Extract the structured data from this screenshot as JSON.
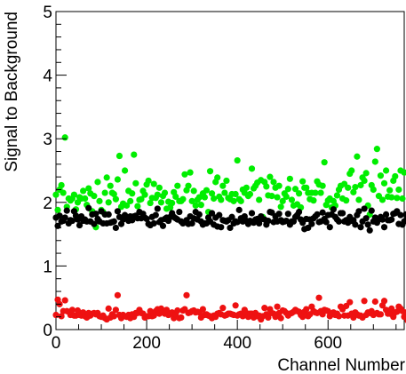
{
  "chart_data": {
    "type": "scatter",
    "title": "",
    "xlabel": "Channel Number",
    "ylabel": "Signal to Background",
    "xlim": [
      0,
      768
    ],
    "ylim": [
      0,
      5
    ],
    "xticks": [
      0,
      200,
      400,
      600
    ],
    "yticks": [
      0,
      1,
      2,
      3,
      4,
      5
    ],
    "grid": false,
    "legend": "none",
    "n_points_per_series": 193,
    "x_step": 4,
    "series": [
      {
        "color": "#00ee00",
        "values": [
          2.12,
          1.88,
          2.2,
          2.27,
          2.15,
          3.02,
          1.93,
          2.06,
          2.03,
          2.06,
          2.12,
          1.89,
          2.0,
          2.08,
          2.06,
          2.18,
          2.06,
          1.96,
          2.22,
          2.14,
          1.86,
          2.1,
          1.61,
          2.32,
          2.02,
          1.88,
          1.85,
          2.15,
          2.39,
          2.0,
          2.26,
          2.15,
          2.13,
          2.05,
          2.36,
          2.73,
          1.93,
          1.98,
          2.5,
          1.95,
          2.18,
          2.02,
          2.14,
          2.75,
          2.3,
          1.94,
          2.04,
          2.05,
          2.18,
          2.12,
          2.28,
          2.34,
          1.99,
          2.07,
          2.29,
          2.07,
          2.12,
          2.23,
          2.0,
          2.1,
          2.15,
          1.9,
          2.01,
          1.92,
          1.99,
          2.16,
          2.09,
          2.26,
          2.02,
          2.02,
          2.05,
          2.44,
          2.19,
          2.26,
          2.47,
          2.02,
          2.18,
          1.95,
          2.04,
          2.08,
          1.96,
          2.14,
          2.08,
          2.19,
          1.85,
          2.49,
          2.14,
          2.06,
          2.32,
          2.39,
          2.09,
          2.04,
          2.26,
          2.15,
          2.34,
          2.07,
          2.05,
          2.13,
          2.02,
          2.13,
          2.66,
          2.05,
          2.02,
          2.2,
          2.15,
          2.23,
          2.1,
          2.13,
          2.53,
          2.22,
          2.26,
          2.31,
          2.04,
          2.35,
          1.77,
          2.32,
          2.25,
          2.11,
          2.4,
          2.1,
          2.32,
          2.23,
          2.08,
          2.26,
          1.93,
          2.02,
          2.14,
          2.09,
          2.21,
          2.37,
          2.04,
          1.95,
          2.21,
          1.97,
          2.14,
          1.92,
          2.33,
          2.23,
          2.23,
          2.15,
          2.05,
          2.15,
          2.03,
          2.15,
          2.33,
          2.28,
          2.15,
          2.26,
          2.63,
          1.96,
          2.03,
          2.06,
          1.92,
          2.02,
          1.95,
          2.11,
          2.2,
          2.26,
          2.06,
          2.29,
          2.03,
          2.23,
          2.45,
          2.5,
          2.16,
          2.24,
          2.72,
          2.04,
          2.27,
          2.39,
          2.34,
          2.46,
          1.95,
          1.81,
          2.27,
          2.2,
          2.64,
          2.84,
          2.1,
          2.42,
          2.04,
          2.3,
          2.5,
          2.09,
          2.19,
          2.08,
          2.34,
          2.41,
          2.07,
          2.2,
          2.5,
          2.06,
          2.47
        ]
      },
      {
        "color": "#000000",
        "values": [
          1.76,
          1.63,
          1.79,
          1.7,
          1.71,
          1.76,
          1.87,
          1.67,
          1.72,
          1.71,
          1.86,
          1.79,
          1.73,
          1.64,
          1.78,
          1.71,
          1.73,
          1.7,
          1.91,
          1.7,
          1.81,
          1.66,
          1.82,
          1.74,
          1.7,
          1.86,
          1.67,
          1.81,
          1.67,
          1.81,
          1.68,
          1.69,
          1.7,
          1.6,
          1.86,
          1.77,
          1.66,
          1.73,
          1.8,
          1.75,
          1.71,
          1.78,
          1.72,
          1.78,
          1.79,
          1.75,
          1.85,
          1.75,
          1.82,
          1.76,
          1.74,
          1.66,
          1.64,
          1.77,
          1.67,
          1.8,
          1.9,
          1.69,
          1.72,
          1.63,
          1.74,
          1.76,
          1.71,
          1.77,
          1.83,
          1.77,
          1.75,
          1.73,
          1.85,
          1.7,
          1.67,
          1.69,
          1.72,
          1.66,
          1.78,
          1.67,
          1.75,
          1.85,
          1.73,
          1.81,
          1.7,
          1.65,
          1.67,
          1.67,
          1.76,
          1.7,
          1.83,
          1.65,
          1.76,
          1.62,
          1.8,
          1.61,
          1.72,
          1.71,
          1.7,
          1.72,
          1.6,
          1.77,
          1.67,
          1.7,
          1.69,
          1.88,
          1.75,
          1.7,
          1.78,
          1.71,
          1.66,
          1.71,
          1.83,
          1.68,
          1.73,
          1.74,
          1.67,
          1.78,
          1.74,
          1.73,
          1.65,
          1.71,
          1.85,
          1.84,
          1.69,
          1.78,
          1.7,
          1.82,
          1.72,
          1.69,
          1.7,
          1.71,
          1.82,
          1.65,
          1.7,
          1.7,
          1.77,
          1.8,
          1.85,
          1.73,
          1.68,
          1.58,
          1.74,
          1.6,
          1.73,
          1.66,
          1.75,
          1.78,
          1.81,
          1.69,
          1.7,
          1.84,
          1.74,
          1.69,
          1.8,
          1.61,
          1.81,
          1.89,
          1.77,
          1.73,
          1.7,
          1.83,
          1.83,
          1.7,
          1.72,
          1.68,
          1.77,
          1.71,
          1.72,
          1.65,
          1.8,
          1.86,
          1.61,
          1.7,
          1.9,
          1.75,
          1.65,
          1.56,
          1.87,
          1.7,
          1.76,
          1.68,
          1.73,
          1.77,
          1.73,
          1.61,
          1.81,
          1.72,
          1.72,
          1.73,
          1.82,
          1.83,
          1.86,
          1.66,
          1.8,
          1.65,
          1.7,
          1.81,
          1.75
        ]
      },
      {
        "color": "#ee1111",
        "values": [
          0.23,
          0.47,
          0.4,
          0.21,
          0.29,
          0.46,
          0.29,
          0.28,
          0.23,
          0.31,
          0.22,
          0.22,
          0.3,
          0.23,
          0.22,
          0.27,
          0.21,
          0.19,
          0.26,
          0.22,
          0.25,
          0.26,
          0.24,
          0.26,
          0.21,
          0.2,
          0.22,
          0.18,
          0.16,
          0.33,
          0.19,
          0.24,
          0.21,
          0.31,
          0.54,
          0.23,
          0.18,
          0.23,
          0.21,
          0.2,
          0.23,
          0.18,
          0.24,
          0.2,
          0.26,
          0.26,
          0.31,
          0.26,
          0.25,
          0.19,
          0.21,
          0.21,
          0.29,
          0.21,
          0.22,
          0.29,
          0.32,
          0.25,
          0.33,
          0.27,
          0.25,
          0.31,
          0.23,
          0.25,
          0.27,
          0.18,
          0.24,
          0.3,
          0.18,
          0.19,
          0.3,
          0.32,
          0.54,
          0.26,
          0.27,
          0.29,
          0.3,
          0.27,
          0.28,
          0.27,
          0.19,
          0.32,
          0.23,
          0.24,
          0.22,
          0.21,
          0.18,
          0.22,
          0.2,
          0.25,
          0.26,
          0.24,
          0.34,
          0.22,
          0.23,
          0.25,
          0.25,
          0.24,
          0.23,
          0.38,
          0.22,
          0.24,
          0.25,
          0.21,
          0.31,
          0.26,
          0.2,
          0.25,
          0.25,
          0.19,
          0.26,
          0.21,
          0.22,
          0.16,
          0.21,
          0.34,
          0.24,
          0.19,
          0.32,
          0.26,
          0.25,
          0.2,
          0.36,
          0.26,
          0.18,
          0.3,
          0.29,
          0.26,
          0.22,
          0.25,
          0.26,
          0.28,
          0.31,
          0.29,
          0.28,
          0.23,
          0.2,
          0.28,
          0.32,
          0.21,
          0.24,
          0.36,
          0.29,
          0.27,
          0.26,
          0.5,
          0.29,
          0.24,
          0.31,
          0.3,
          0.29,
          0.21,
          0.24,
          0.27,
          0.23,
          0.25,
          0.21,
          0.36,
          0.32,
          0.22,
          0.37,
          0.22,
          0.43,
          0.25,
          0.19,
          0.27,
          0.24,
          0.22,
          0.22,
          0.19,
          0.45,
          0.23,
          0.27,
          0.26,
          0.29,
          0.23,
          0.44,
          0.26,
          0.24,
          0.24,
          0.38,
          0.45,
          0.31,
          0.25,
          0.25,
          0.33,
          0.2,
          0.27,
          0.28,
          0.36,
          0.33,
          0.29,
          0.2,
          0.27,
          0.14
        ]
      }
    ]
  }
}
